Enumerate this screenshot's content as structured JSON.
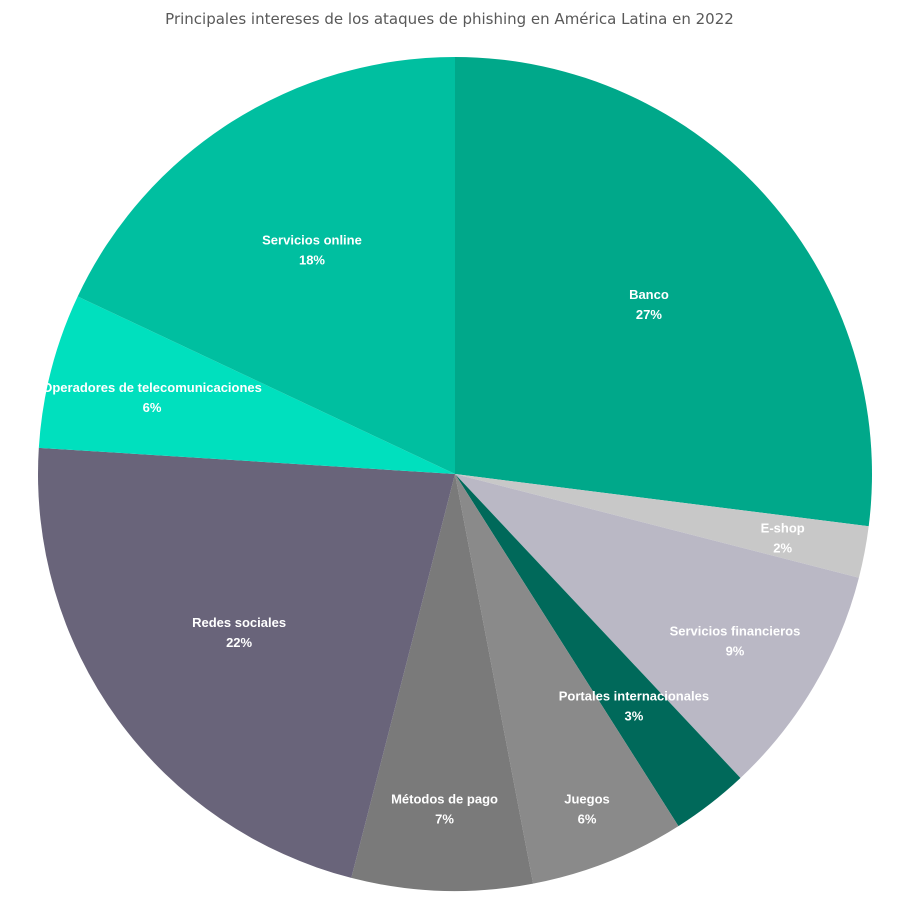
{
  "chart_data": {
    "type": "pie",
    "title": "Principales intereses de los ataques de phishing en América Latina en 2022",
    "start_angle_deg": 0,
    "direction": "clockwise",
    "slices": [
      {
        "label": "Banco",
        "value": 27,
        "value_label": "27%",
        "color": "#00A88A"
      },
      {
        "label": "E-shop",
        "value": 2,
        "value_label": "2%",
        "color": "#C8C8C8"
      },
      {
        "label": "Servicios financieros",
        "value": 9,
        "value_label": "9%",
        "color": "#BAB8C5"
      },
      {
        "label": "Portales internacionales",
        "value": 3,
        "value_label": "3%",
        "color": "#00695A"
      },
      {
        "label": "Juegos",
        "value": 6,
        "value_label": "6%",
        "color": "#8A8A8A"
      },
      {
        "label": "Métodos de pago",
        "value": 7,
        "value_label": "7%",
        "color": "#7A7A7A"
      },
      {
        "label": "Redes sociales",
        "value": 22,
        "value_label": "22%",
        "color": "#69647A"
      },
      {
        "label": "Operadores de telecomunicaciones",
        "value": 6,
        "value_label": "6%",
        "color": "#00E0BE"
      },
      {
        "label": "Servicios online",
        "value": 18,
        "value_label": "18%",
        "color": "#00BFA0"
      }
    ]
  }
}
